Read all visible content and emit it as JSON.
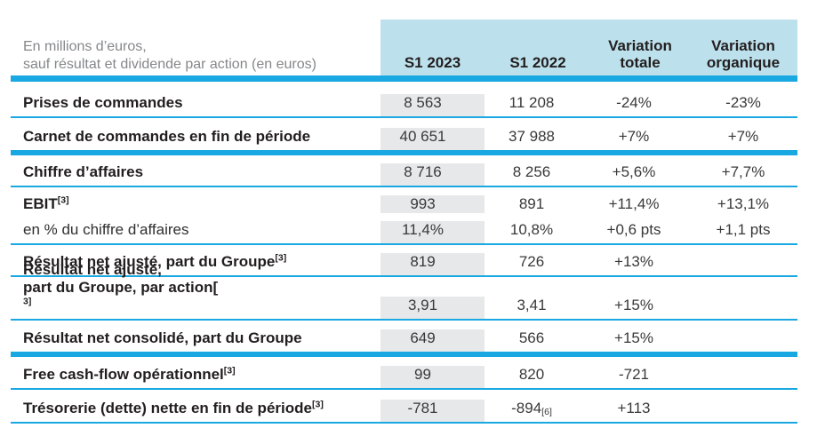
{
  "colors": {
    "accent_cyan": "#19A8E2",
    "header_band": "#BDE1EC",
    "column_highlight": "#E7E8E9",
    "caption_gray": "#85878A",
    "text_dark": "#221E1F",
    "value_gray": "#39393B"
  },
  "table": {
    "caption": {
      "line1": "En millions d’euros,",
      "line2": "sauf résultat et dividende par action (en euros)"
    },
    "column_headers": [
      "S1 2023",
      "S1 2022",
      "Variation totale",
      "Variation organique"
    ],
    "rows": [
      {
        "label": "Prises de commandes",
        "sup": "",
        "c1": "8 563",
        "c2": "11 208",
        "c3": "-24%",
        "c4": "-23%"
      },
      {
        "label": "Carnet de commandes en fin de période",
        "sup": "",
        "c1": "40 651",
        "c2": "37 988",
        "c3": "+7%",
        "c4": "+7%"
      },
      {
        "label": "Chiffre d’affaires",
        "sup": "",
        "c1": "8 716",
        "c2": "8 256",
        "c3": "+5,6%",
        "c4": "+7,7%"
      },
      {
        "label": "EBIT",
        "sup": "[3]",
        "c1": "993",
        "c2": "891",
        "c3": "+11,4%",
        "c4": "+13,1%"
      },
      {
        "label": "en % du chiffre d’affaires",
        "sup": "",
        "c1": "11,4%",
        "c2": "10,8%",
        "c3": "+0,6 pts",
        "c4": "+1,1 pts"
      },
      {
        "label": "Résultat net ajusté, part du Groupe",
        "sup": "[3]",
        "c1": "819",
        "c2": "726",
        "c3": "+13%",
        "c4": ""
      },
      {
        "label_line1": "Résultat net ajusté,",
        "label": "part du Groupe, par action[",
        "sup": "3]",
        "c1": "3,91",
        "c2": "3,41",
        "c3": "+15%",
        "c4": ""
      },
      {
        "label": "Résultat net consolidé, part du Groupe",
        "sup": "",
        "c1": "649",
        "c2": "566",
        "c3": "+15%",
        "c4": ""
      },
      {
        "label": "Free cash-flow opérationnel",
        "sup": "[3]",
        "c1": "99",
        "c2": "820",
        "c3": "-721",
        "c4": ""
      },
      {
        "label": "Trésorerie (dette) nette en fin de période",
        "sup": "[3]",
        "c1": "-781",
        "c2": "-894",
        "c2_sup": "[6]",
        "c3": "+113",
        "c4": ""
      }
    ]
  }
}
